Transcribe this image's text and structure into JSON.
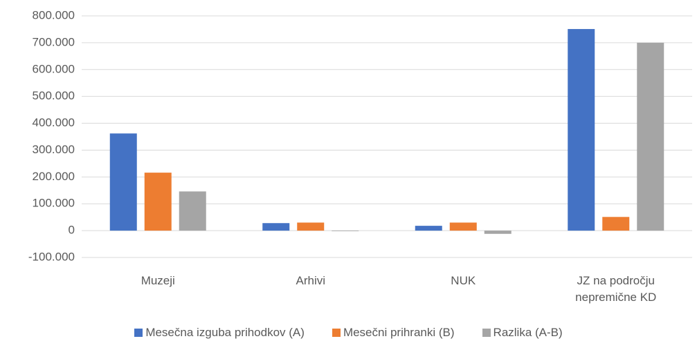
{
  "chart_data": {
    "type": "bar",
    "categories": [
      "Muzeji",
      "Arhivi",
      "NUK",
      "JZ na področju nepremične KD"
    ],
    "series": [
      {
        "name": "Mesečna izguba prihodkov (A)",
        "color": "#4472c4",
        "values": [
          362000,
          28000,
          18000,
          751000
        ]
      },
      {
        "name": "Mesečni prihranki (B)",
        "color": "#ed7d31",
        "values": [
          216000,
          30000,
          30000,
          51000
        ]
      },
      {
        "name": "Razlika (A-B)",
        "color": "#a5a5a5",
        "values": [
          146000,
          -2000,
          -12000,
          700000
        ]
      }
    ],
    "ylim": [
      -100000,
      800000
    ],
    "yticks": [
      {
        "value": -100000,
        "label": "-100.000"
      },
      0,
      {
        "value": 100000,
        "label": "100.000"
      },
      {
        "value": 200000,
        "label": "200.000"
      },
      {
        "value": 300000,
        "label": "300.000"
      },
      {
        "value": 400000,
        "label": "400.000"
      },
      {
        "value": 500000,
        "label": "500.000"
      },
      {
        "value": 600000,
        "label": "600.000"
      },
      {
        "value": 700000,
        "label": "700.000"
      },
      {
        "value": 800000,
        "label": "800.000"
      }
    ],
    "grid": true,
    "legend": "bottom"
  }
}
